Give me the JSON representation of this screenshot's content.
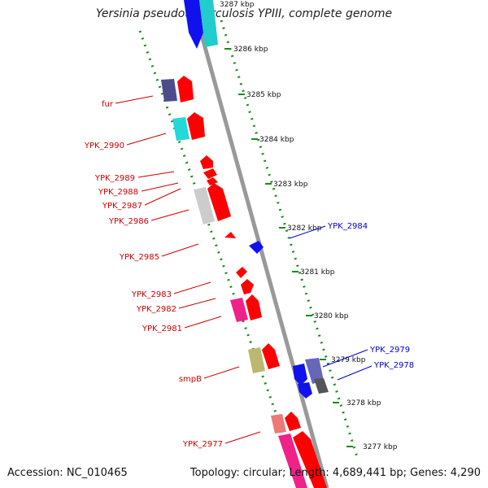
{
  "title": "Yersinia pseudotuberculosis YPIII, complete genome",
  "footer": {
    "accession_label": "Accession: NC_010465",
    "summary_label": "Topology: circular; Length: 4,689,441 bp; Genes: 4,290"
  },
  "colors": {
    "backbone": "#999999",
    "tick": "#1e8a1e",
    "forward_label": "#cc0000",
    "reverse_label": "#0000cc",
    "forward_gene": "#ff0000",
    "reverse_gene": "#1111ee"
  },
  "ruler_labels": [
    "3287 kbp",
    "3286 kbp",
    "3285 kbp",
    "3284 kbp",
    "3283 kbp",
    "3282 kbp",
    "3281 kbp",
    "3280 kbp",
    "3279 kbp",
    "3278 kbp",
    "3277 kbp"
  ],
  "forward_genes": [
    "fur",
    "YPK_2990",
    "YPK_2989",
    "YPK_2988",
    "YPK_2987",
    "YPK_2986",
    "YPK_2985",
    "YPK_2983",
    "YPK_2982",
    "YPK_2981",
    "smpB",
    "YPK_2977"
  ],
  "reverse_genes": [
    "YPK_2984",
    "YPK_2979",
    "YPK_2978"
  ]
}
